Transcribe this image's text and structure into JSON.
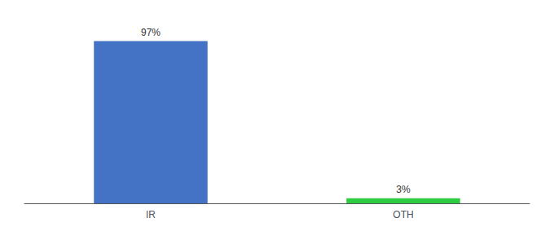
{
  "chart_data": {
    "type": "bar",
    "categories": [
      "IR",
      "OTH"
    ],
    "values": [
      97,
      3
    ],
    "value_labels": [
      "97%",
      "3%"
    ],
    "colors": [
      "#4472c4",
      "#2ecc40"
    ],
    "ylim": [
      0,
      107
    ],
    "grid": false,
    "tick_labels": "x"
  }
}
